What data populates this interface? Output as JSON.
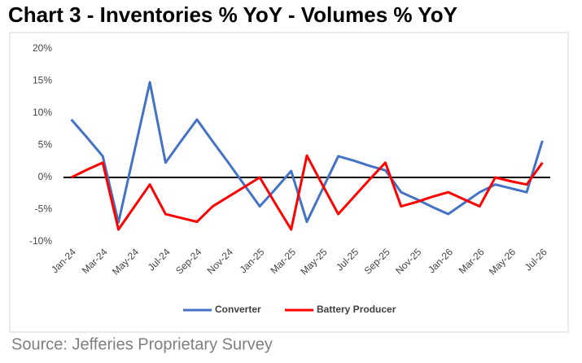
{
  "chart_data": {
    "type": "line",
    "title": "Chart 3 - Inventories % YoY - Volumes % YoY",
    "source": "Source: Jefferies Proprietary Survey",
    "categories": [
      "Jan-24",
      null,
      "Mar-24",
      null,
      "May-24",
      null,
      "Jul-24",
      null,
      "Sep-24",
      null,
      "Nov-24",
      null,
      "Jan-25",
      null,
      "Mar-25",
      null,
      "May-25",
      null,
      "Jul-25",
      null,
      "Sep-25",
      null,
      "Nov-25",
      null,
      "Jan-26",
      null,
      "Mar-26",
      null,
      "May-26",
      null,
      "Jul-26"
    ],
    "series": [
      {
        "name": "Converter",
        "color": "#4472c4",
        "values": [
          9.0,
          6.2,
          3.3,
          -7.0,
          3.9,
          14.8,
          2.3,
          5.7,
          9.0,
          5.6,
          2.3,
          -1.1,
          -4.5,
          -1.8,
          1.0,
          -6.9,
          -1.8,
          3.3,
          2.6,
          1.8,
          1.1,
          -2.3,
          -3.4,
          -4.6,
          -5.7,
          -4.0,
          -2.3,
          -1.1,
          -1.7,
          -2.3,
          5.7
        ]
      },
      {
        "name": "Battery Producer",
        "color": "#ff0000",
        "values": [
          0.0,
          1.2,
          2.3,
          -8.1,
          -4.6,
          -1.1,
          -5.7,
          -6.3,
          -6.9,
          -4.5,
          -3.0,
          -1.5,
          0.0,
          -4.1,
          -8.1,
          3.4,
          -1.2,
          -5.7,
          -3.0,
          -0.3,
          2.3,
          -4.5,
          -3.8,
          -3.0,
          -2.3,
          -3.4,
          -4.5,
          0.0,
          -0.6,
          -1.1,
          2.3
        ]
      }
    ],
    "ylim": [
      -10,
      20
    ],
    "yticks": [
      {
        "value": -10,
        "label": "-10%"
      },
      {
        "value": -5,
        "label": "-5%"
      },
      {
        "value": 0,
        "label": "0%"
      },
      {
        "value": 5,
        "label": "5%"
      },
      {
        "value": 10,
        "label": "10%"
      },
      {
        "value": 15,
        "label": "15%"
      },
      {
        "value": 20,
        "label": "20%"
      }
    ],
    "legend": "bottom"
  }
}
